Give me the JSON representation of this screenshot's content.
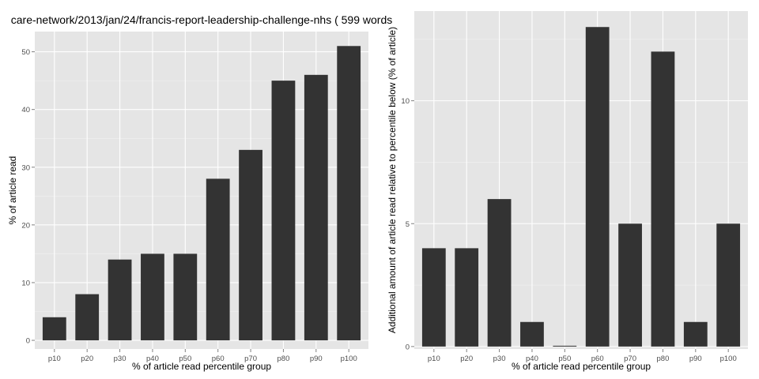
{
  "chart_data": [
    {
      "type": "bar",
      "title": "care-network/2013/jan/24/francis-report-leadership-challenge-nhs ( 599 words",
      "xlabel": "% of article read percentile group",
      "ylabel": "% of article read",
      "categories": [
        "p10",
        "p20",
        "p30",
        "p40",
        "p50",
        "p60",
        "p70",
        "p80",
        "p90",
        "p100"
      ],
      "values": [
        4,
        8,
        14,
        15,
        15,
        28,
        33,
        45,
        46,
        51
      ],
      "ylim": [
        -1.5,
        53.5
      ],
      "yticks": [
        0,
        10,
        20,
        30,
        40,
        50
      ],
      "grid": true,
      "bar_color": "#333333",
      "panel_color": "#e5e5e5"
    },
    {
      "type": "bar",
      "title": "",
      "xlabel": "% of article read percentile group",
      "ylabel": "Additional amount of article read relative to percentile below (% of article)",
      "categories": [
        "p10",
        "p20",
        "p30",
        "p40",
        "p50",
        "p60",
        "p70",
        "p80",
        "p90",
        "p100"
      ],
      "values": [
        4,
        4,
        6,
        1,
        0,
        13,
        5,
        12,
        1,
        5
      ],
      "ylim": [
        -0.1,
        13.65
      ],
      "yticks": [
        0,
        5,
        10
      ],
      "grid": true,
      "bar_color": "#333333",
      "panel_color": "#e5e5e5"
    }
  ]
}
